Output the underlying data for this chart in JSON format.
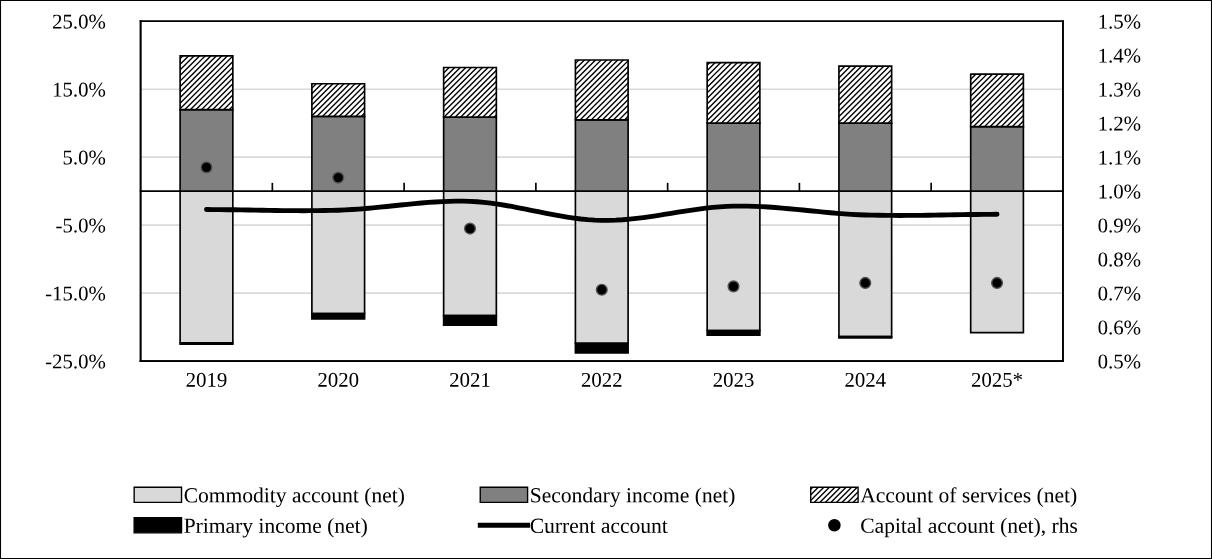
{
  "chart_data": {
    "type": "bar",
    "stacked": true,
    "categories": [
      "2019",
      "2020",
      "2021",
      "2022",
      "2023",
      "2024",
      "2025*"
    ],
    "series": [
      {
        "name": "Commodity account (net)",
        "color": "#d9d9d9",
        "values": [
          -22.3,
          -18.0,
          -18.3,
          -22.4,
          -20.5,
          -21.4,
          -20.8
        ]
      },
      {
        "name": "Secondary income (net)",
        "color": "#808080",
        "values": [
          12.0,
          11.0,
          10.9,
          10.5,
          10.0,
          10.0,
          9.5
        ]
      },
      {
        "name": "Account of services (net)",
        "color": "#000000",
        "values": [
          7.9,
          4.8,
          7.3,
          8.8,
          8.9,
          8.4,
          7.7
        ]
      },
      {
        "name": "Primary income (net)",
        "color": "#000000",
        "values": [
          -0.2,
          -0.8,
          -1.4,
          -1.4,
          -0.7,
          -0.2,
          0.0
        ]
      },
      {
        "name": "Current account",
        "type": "line",
        "color": "#000000",
        "values": [
          -2.7,
          -2.8,
          -1.5,
          -4.3,
          -2.2,
          -3.5,
          -3.4
        ]
      },
      {
        "name": "Capital account (net), rhs",
        "type": "scatter",
        "axis": "y2",
        "color": "#000000",
        "marker": "circle",
        "values": [
          1.07,
          1.04,
          0.89,
          0.71,
          0.72,
          0.73,
          0.73
        ]
      }
    ],
    "ylim": [
      -25,
      25
    ],
    "yticks": [
      {
        "value": -25,
        "label": "-25.0%"
      },
      {
        "value": -15,
        "label": "-15.0%"
      },
      {
        "value": -5,
        "label": "-5.0%"
      },
      {
        "value": 5,
        "label": "5.0%"
      },
      {
        "value": 15,
        "label": "15.0%"
      },
      {
        "value": 25,
        "label": "25.0%"
      }
    ],
    "y2lim": [
      0.5,
      1.5
    ],
    "y2ticks": [
      {
        "value": 0.5,
        "label": "0.5%"
      },
      {
        "value": 0.6,
        "label": "0.6%"
      },
      {
        "value": 0.7,
        "label": "0.7%"
      },
      {
        "value": 0.8,
        "label": "0.8%"
      },
      {
        "value": 0.9,
        "label": "0.9%"
      },
      {
        "value": 1.0,
        "label": "1.0%"
      },
      {
        "value": 1.1,
        "label": "1.1%"
      },
      {
        "value": 1.2,
        "label": "1.2%"
      },
      {
        "value": 1.3,
        "label": "1.3%"
      },
      {
        "value": 1.4,
        "label": "1.4%"
      },
      {
        "value": 1.5,
        "label": "1.5%"
      }
    ],
    "grid": "y",
    "legend": "bottom"
  }
}
